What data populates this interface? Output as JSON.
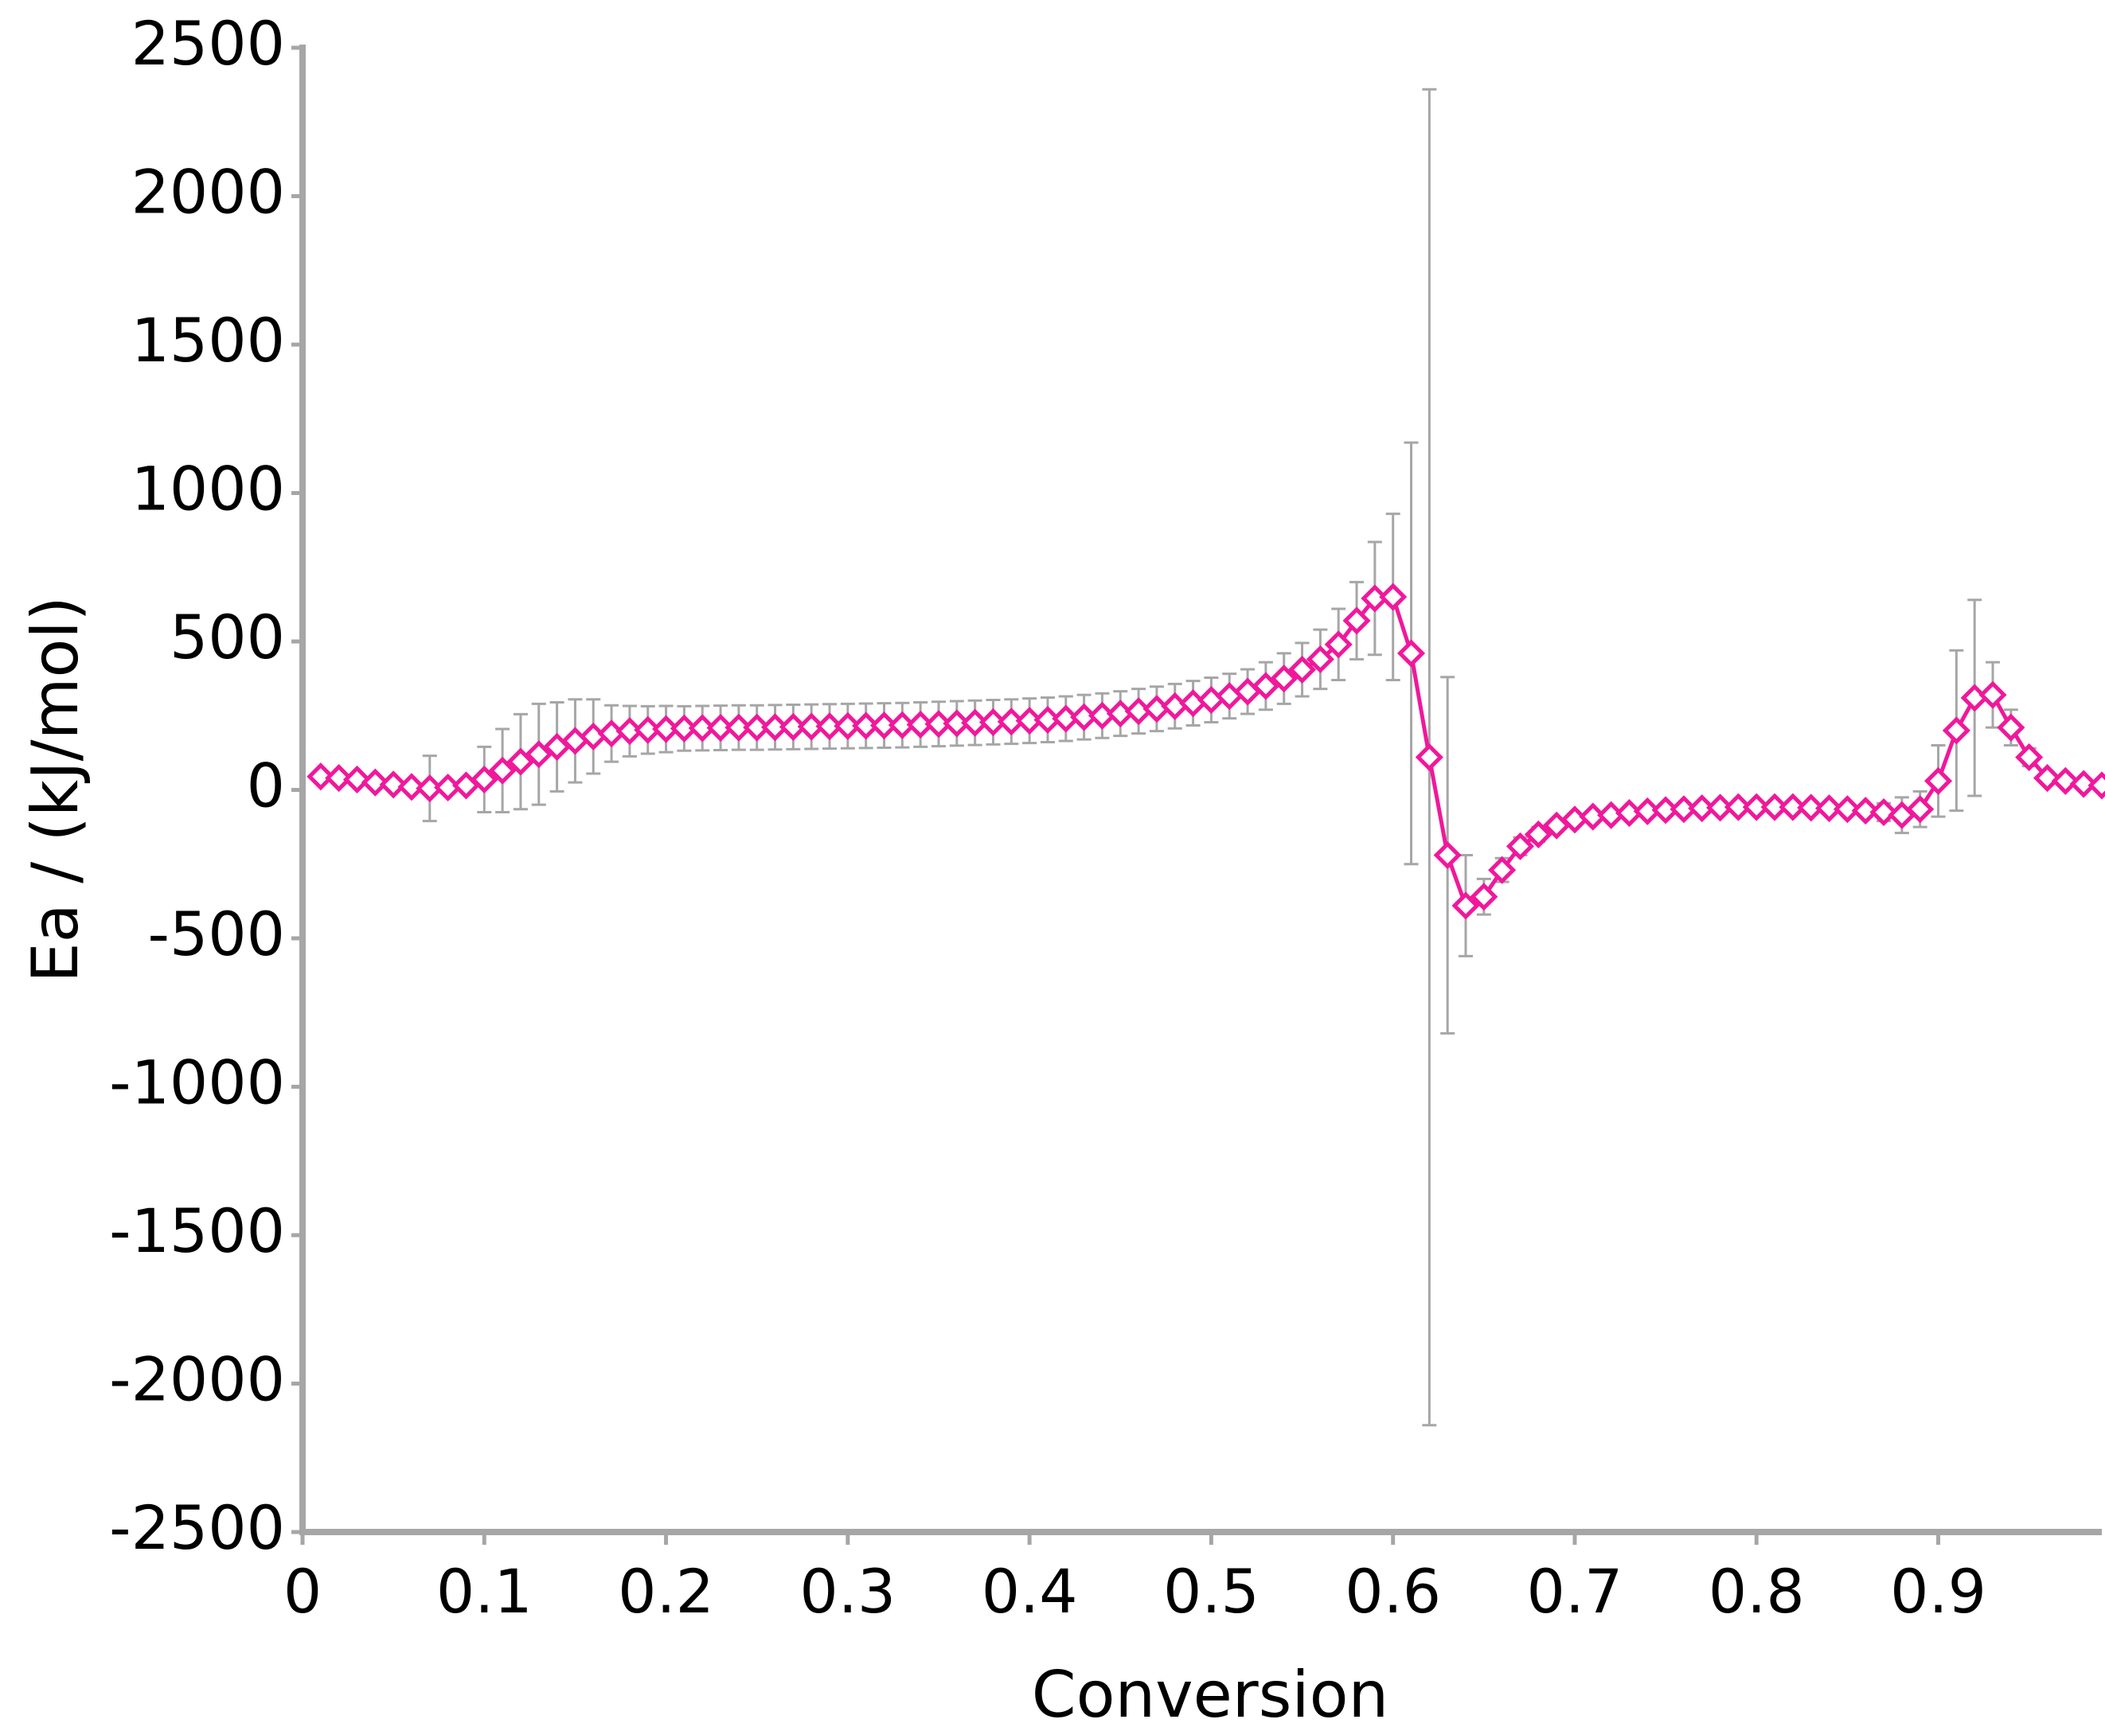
{
  "chart_data": {
    "type": "line",
    "xlabel": "Conversion",
    "ylabel": "Ea / (kJ/mol)",
    "x": [
      0.01,
      0.02,
      0.03,
      0.04,
      0.05,
      0.06,
      0.07,
      0.08,
      0.09,
      0.1,
      0.11,
      0.12,
      0.13,
      0.14,
      0.15,
      0.16,
      0.17,
      0.18,
      0.19,
      0.2,
      0.21,
      0.22,
      0.23,
      0.24,
      0.25,
      0.26,
      0.27,
      0.28,
      0.29,
      0.3,
      0.31,
      0.32,
      0.33,
      0.34,
      0.35,
      0.36,
      0.37,
      0.38,
      0.39,
      0.4,
      0.41,
      0.42,
      0.43,
      0.44,
      0.45,
      0.46,
      0.47,
      0.48,
      0.49,
      0.5,
      0.51,
      0.52,
      0.53,
      0.54,
      0.55,
      0.56,
      0.57,
      0.58,
      0.59,
      0.6,
      0.61,
      0.62,
      0.63,
      0.64,
      0.65,
      0.66,
      0.67,
      0.68,
      0.69,
      0.7,
      0.71,
      0.72,
      0.73,
      0.74,
      0.75,
      0.76,
      0.77,
      0.78,
      0.79,
      0.8,
      0.81,
      0.82,
      0.83,
      0.84,
      0.85,
      0.86,
      0.87,
      0.88,
      0.89,
      0.9,
      0.91,
      0.92,
      0.93,
      0.94,
      0.95,
      0.96,
      0.97,
      0.98,
      0.99
    ],
    "series": [
      {
        "color": "#f0189b",
        "error_color": "#a6a6a6",
        "values": [
          45,
          40,
          35,
          25,
          18,
          10,
          5,
          8,
          15,
          35,
          65,
          95,
          120,
          145,
          165,
          180,
          190,
          198,
          202,
          205,
          207,
          208,
          209,
          210,
          210,
          211,
          212,
          213,
          214,
          215,
          216,
          217,
          218,
          220,
          222,
          224,
          226,
          228,
          230,
          233,
          236,
          240,
          245,
          250,
          257,
          265,
          273,
          282,
          292,
          303,
          316,
          331,
          350,
          375,
          405,
          440,
          490,
          570,
          645,
          650,
          460,
          110,
          -220,
          -390,
          -360,
          -270,
          -190,
          -150,
          -120,
          -100,
          -90,
          -85,
          -78,
          -72,
          -68,
          -65,
          -62,
          -60,
          -58,
          -58,
          -58,
          -58,
          -60,
          -62,
          -65,
          -70,
          -75,
          -85,
          -65,
          30,
          200,
          310,
          320,
          210,
          110,
          40,
          30,
          20,
          15
        ],
        "errors": [
          10,
          10,
          10,
          10,
          10,
          10,
          110,
          20,
          20,
          110,
          140,
          160,
          170,
          150,
          140,
          125,
          95,
          85,
          80,
          78,
          75,
          75,
          75,
          75,
          75,
          75,
          75,
          75,
          75,
          75,
          75,
          75,
          75,
          75,
          75,
          75,
          75,
          75,
          75,
          75,
          75,
          75,
          75,
          75,
          75,
          75,
          75,
          75,
          75,
          75,
          75,
          75,
          80,
          85,
          90,
          100,
          120,
          130,
          190,
          280,
          710,
          2250,
          600,
          170,
          60,
          40,
          30,
          25,
          20,
          15,
          15,
          15,
          15,
          15,
          15,
          15,
          15,
          15,
          15,
          15,
          15,
          15,
          15,
          15,
          15,
          20,
          30,
          60,
          60,
          120,
          270,
          330,
          110,
          60,
          30,
          20,
          15,
          15,
          15
        ]
      }
    ],
    "xlim": [
      0,
      0.99
    ],
    "xticks": [
      0,
      0.1,
      0.2,
      0.3,
      0.4,
      0.5,
      0.6,
      0.7,
      0.8,
      0.9
    ],
    "ylim": [
      -2500,
      2500
    ],
    "yticks": [
      -2500,
      -2000,
      -1500,
      -1000,
      -500,
      0,
      500,
      1000,
      1500,
      2000,
      2500
    ],
    "axis_color": "#a6a6a6"
  }
}
